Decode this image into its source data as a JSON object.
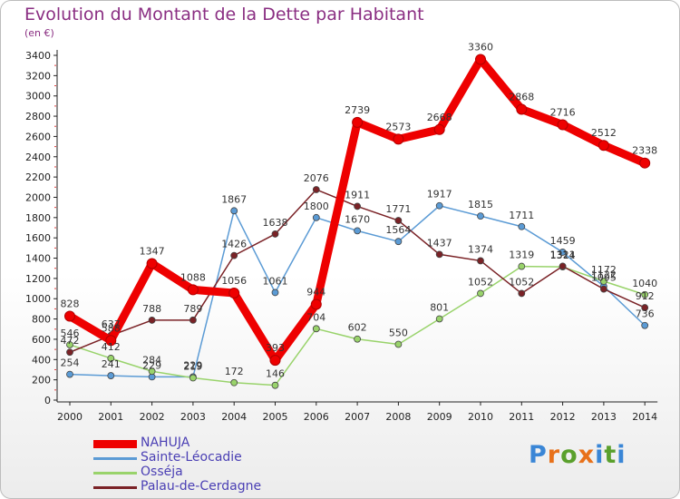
{
  "header": {
    "title": "Evolution du Montant de la Dette par Habitant",
    "unit": "(en €)"
  },
  "logo": {
    "text": "Proxiti",
    "colors": [
      "#3a86d6",
      "#e8711a",
      "#5aa02c",
      "#e8711a",
      "#3a86d6",
      "#5aa02c",
      "#3a86d6"
    ]
  },
  "chart_data": {
    "type": "line",
    "title": "Evolution du Montant de la Dette par Habitant",
    "ylabel": "(en €)",
    "xlabel": "",
    "x": [
      "2000",
      "2001",
      "2002",
      "2003",
      "2004",
      "2005",
      "2006",
      "2007",
      "2008",
      "2009",
      "2010",
      "2011",
      "2012",
      "2013",
      "2014"
    ],
    "ylim": [
      0,
      3400
    ],
    "yticks": [
      0,
      200,
      400,
      600,
      800,
      1000,
      1200,
      1400,
      1600,
      1800,
      2000,
      2200,
      2400,
      2600,
      2800,
      3000,
      3200,
      3400
    ],
    "grid": false,
    "legend_position": "bottom-left",
    "series": [
      {
        "name": "NAHUJA",
        "color": "#ee0000",
        "values": [
          828,
          588,
          1347,
          1088,
          1056,
          393,
          944,
          2739,
          2573,
          2668,
          3360,
          2868,
          2716,
          2512,
          2338
        ],
        "labels": [
          "828",
          "588",
          "1347",
          "1088",
          "1056",
          "393",
          "944",
          "2739",
          "2573",
          "2668",
          "3360",
          "2868",
          "2716",
          "2512",
          "2338"
        ]
      },
      {
        "name": "Sainte-Léocadie",
        "color": "#5b9bd5",
        "values": [
          254,
          241,
          229,
          229,
          1867,
          1061,
          1800,
          1670,
          1564,
          1917,
          1815,
          1711,
          1459,
          1122,
          736
        ],
        "labels": [
          "254",
          "241",
          "229",
          "229",
          "1867",
          "1061",
          "1800",
          "1670",
          "1564",
          "1917",
          "1815",
          "1711",
          "1459",
          "1122",
          "736"
        ]
      },
      {
        "name": "Osséja",
        "color": "#99d36b",
        "values": [
          546,
          412,
          284,
          219,
          172,
          146,
          704,
          602,
          550,
          801,
          1052,
          1319,
          1314,
          1172,
          1040
        ],
        "labels": [
          "546",
          "412",
          "284",
          "219",
          "172",
          "146",
          "704",
          "602",
          "550",
          "801",
          "1052",
          "1319",
          "1314",
          "1172",
          "1040"
        ]
      },
      {
        "name": "Palau-de-Cerdagne",
        "color": "#7a2226",
        "values": [
          472,
          637,
          788,
          789,
          1426,
          1638,
          2076,
          1911,
          1771,
          1437,
          1374,
          1052,
          1321,
          1095,
          912
        ],
        "labels": [
          "472",
          "637",
          "788",
          "789",
          "1426",
          "1638",
          "2076",
          "1911",
          "1771",
          "1437",
          "1374",
          "1052",
          "1321",
          "1095",
          "912"
        ]
      }
    ]
  }
}
